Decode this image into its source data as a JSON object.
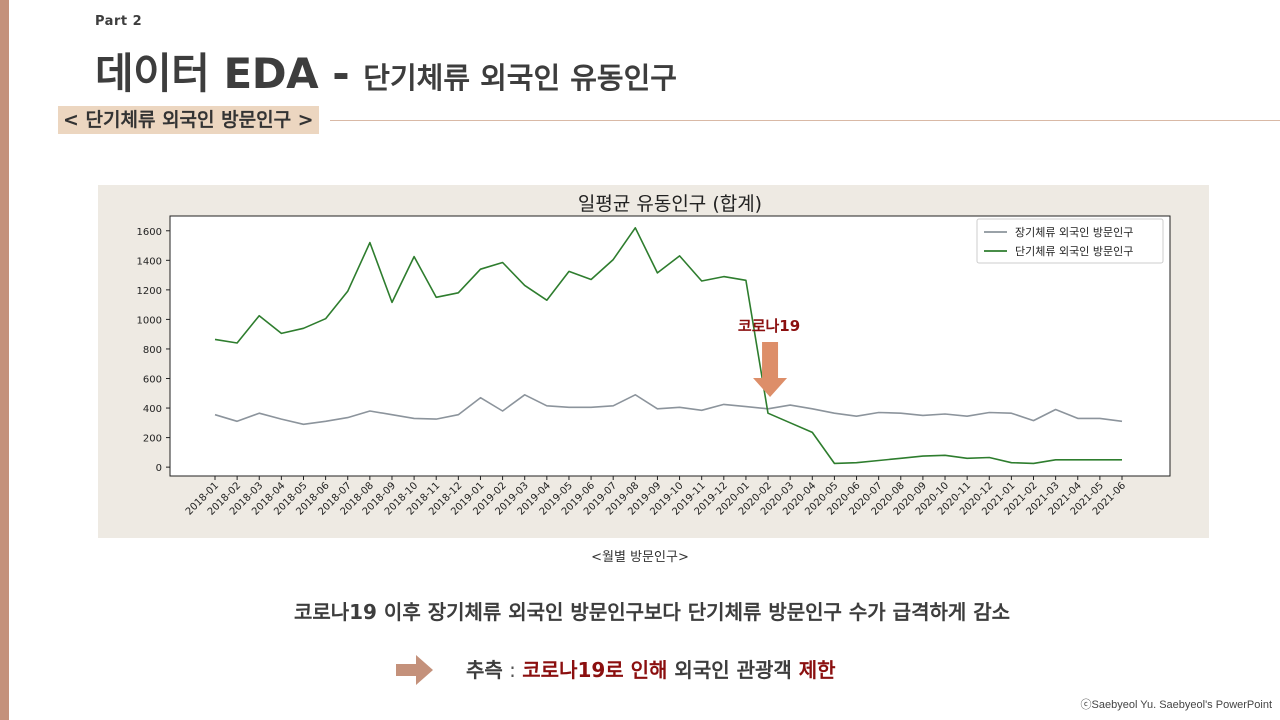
{
  "slide": {
    "part": "Part 2",
    "title_main": "데이터 EDA - ",
    "title_sub": "단기체류 외국인 유동인구",
    "section_tag": "< 단기체류 외국인 방문인구 >",
    "caption": "<월별 방문인구>",
    "summary": "코로나19 이후 장기체류 외국인 방문인구보다 단기체류 방문인구 수가 급격하게 감소",
    "inference": {
      "label": "추측",
      "sep": " : ",
      "highlight1": "코로나19로 인해",
      "middle": " 외국인 관광객 ",
      "highlight2": "제한"
    },
    "copyright": "ⓒSaebyeol Yu. Saebyeol's PowerPoint",
    "colors": {
      "accent": "#c4917b",
      "tag_bg": "#ecd6c0",
      "highlight": "#8b0f0f",
      "panel_bg": "#eeeae3"
    }
  },
  "chart_data": {
    "type": "line",
    "title": "일평균 유동인구 (합계)",
    "xlabel": "",
    "ylabel": "",
    "ylim": [
      -60,
      1700
    ],
    "yticks": [
      0,
      200,
      400,
      600,
      800,
      1000,
      1200,
      1400,
      1600
    ],
    "legend": "top-right",
    "grid": false,
    "categories": [
      "2018-01",
      "2018-02",
      "2018-03",
      "2018-04",
      "2018-05",
      "2018-06",
      "2018-07",
      "2018-08",
      "2018-09",
      "2018-10",
      "2018-11",
      "2018-12",
      "2019-01",
      "2019-02",
      "2019-03",
      "2019-04",
      "2019-05",
      "2019-06",
      "2019-07",
      "2019-08",
      "2019-09",
      "2019-10",
      "2019-11",
      "2019-12",
      "2020-01",
      "2020-02",
      "2020-03",
      "2020-04",
      "2020-05",
      "2020-06",
      "2020-07",
      "2020-08",
      "2020-09",
      "2020-10",
      "2020-11",
      "2020-12",
      "2021-01",
      "2021-02",
      "2021-03",
      "2021-04",
      "2021-05",
      "2021-06"
    ],
    "series": [
      {
        "name": "장기체류 외국인 방문인구",
        "color": "#8c949c",
        "values": [
          355,
          310,
          365,
          325,
          290,
          310,
          335,
          380,
          355,
          330,
          325,
          355,
          470,
          380,
          490,
          415,
          405,
          405,
          415,
          490,
          395,
          405,
          385,
          425,
          410,
          395,
          420,
          395,
          365,
          345,
          370,
          365,
          350,
          360,
          345,
          370,
          365,
          315,
          390,
          330,
          330,
          310
        ]
      },
      {
        "name": "단기체류 외국인 방문인구",
        "color": "#2e7d2e",
        "values": [
          865,
          840,
          1025,
          905,
          940,
          1005,
          1190,
          1520,
          1115,
          1425,
          1150,
          1180,
          1340,
          1385,
          1230,
          1130,
          1325,
          1270,
          1405,
          1620,
          1315,
          1430,
          1260,
          1290,
          1265,
          365,
          300,
          235,
          25,
          30,
          45,
          60,
          75,
          80,
          60,
          65,
          30,
          25,
          50,
          50,
          50,
          50
        ]
      }
    ],
    "annotation": {
      "text": "코로나19",
      "category": "2020-02",
      "color": "#8b0f0f",
      "arrow_color": "#dd8e69"
    }
  }
}
